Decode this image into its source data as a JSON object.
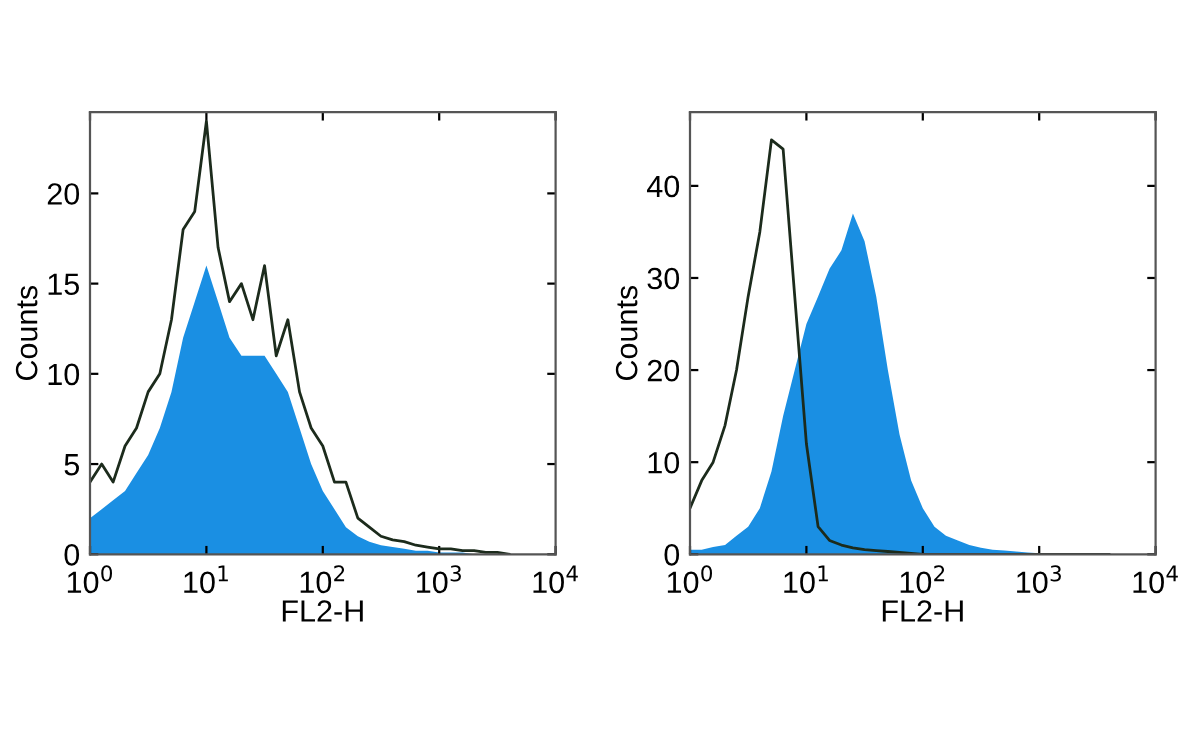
{
  "chart_data": [
    {
      "type": "area",
      "xlabel": "FL2-H",
      "ylabel": "Counts",
      "log": "x",
      "grid": false,
      "x": [
        1,
        1.26,
        1.58,
        2,
        2.51,
        3.16,
        3.98,
        5.01,
        6.31,
        7.94,
        10,
        12.6,
        15.8,
        20,
        25.1,
        31.6,
        39.8,
        50.1,
        63.1,
        79.4,
        100,
        126,
        158,
        200,
        251,
        316,
        398,
        501,
        631,
        794,
        1000,
        1259,
        1585,
        1995,
        2512,
        3162,
        3981
      ],
      "xlim": [
        1,
        10000
      ],
      "xticks": [
        {
          "value": 1,
          "label": "10$^{0}$"
        },
        {
          "value": 10,
          "label": "10$^{1}$"
        },
        {
          "value": 100,
          "label": "10$^{2}$"
        },
        {
          "value": 1000,
          "label": "10$^{3}$"
        },
        {
          "value": 10000,
          "label": "10$^{4}$"
        }
      ],
      "ylim": [
        0,
        24.5
      ],
      "yticks": [
        0,
        5,
        10,
        15,
        20
      ],
      "series": [
        {
          "color": "#1a8fe3",
          "values": [
            2,
            2.5,
            3,
            3.5,
            4.5,
            5.5,
            7,
            9,
            12,
            14,
            16,
            14,
            12,
            11,
            11,
            11,
            10,
            9,
            7,
            5,
            3.5,
            2.5,
            1.5,
            1,
            0.7,
            0.5,
            0.4,
            0.3,
            0.2,
            0.2,
            0.1,
            0.1,
            0.1,
            0,
            0,
            0,
            0
          ]
        },
        {
          "type": "line",
          "color": "#1c2b1c",
          "values": [
            4,
            5,
            4,
            6,
            7,
            9,
            10,
            13,
            18,
            19,
            24,
            17,
            14,
            15,
            13,
            16,
            11,
            13,
            9,
            7,
            6,
            4,
            4,
            2,
            1.5,
            1,
            0.8,
            0.7,
            0.5,
            0.4,
            0.3,
            0.3,
            0.2,
            0.2,
            0.1,
            0.1,
            0
          ]
        }
      ]
    },
    {
      "type": "area",
      "xlabel": "FL2-H",
      "ylabel": "Counts",
      "log": "x",
      "grid": false,
      "x": [
        1,
        1.26,
        1.58,
        2,
        2.51,
        3.16,
        3.98,
        5.01,
        6.31,
        7.94,
        10,
        12.6,
        15.8,
        20,
        25.1,
        31.6,
        39.8,
        50.1,
        63.1,
        79.4,
        100,
        126,
        158,
        200,
        251,
        316,
        398,
        501,
        631,
        794,
        1000,
        1259,
        1585,
        1995,
        2512,
        3162,
        3981
      ],
      "xlim": [
        1,
        10000
      ],
      "xticks": [
        {
          "value": 1,
          "label": "10$^{0}$"
        },
        {
          "value": 10,
          "label": "10$^{1}$"
        },
        {
          "value": 100,
          "label": "10$^{2}$"
        },
        {
          "value": 1000,
          "label": "10$^{3}$"
        },
        {
          "value": 10000,
          "label": "10$^{4}$"
        }
      ],
      "ylim": [
        0,
        48
      ],
      "yticks": [
        0,
        10,
        20,
        30,
        40
      ],
      "series": [
        {
          "color": "#1a8fe3",
          "values": [
            0.5,
            0.5,
            0.8,
            1,
            2,
            3,
            5,
            9,
            15,
            20,
            25,
            28,
            31,
            33,
            37,
            34,
            28,
            20,
            13,
            8,
            5,
            3,
            2,
            1.5,
            1,
            0.7,
            0.5,
            0.4,
            0.3,
            0.2,
            0.1,
            0.1,
            0.1,
            0,
            0,
            0,
            0
          ]
        },
        {
          "type": "line",
          "color": "#1c2b1c",
          "values": [
            5,
            8,
            10,
            14,
            20,
            28,
            35,
            45,
            44,
            28,
            12,
            3,
            1.5,
            1,
            0.7,
            0.5,
            0.4,
            0.3,
            0.2,
            0.1,
            0,
            0,
            0,
            0,
            0,
            0,
            0,
            0,
            0,
            0,
            0,
            0,
            0,
            0,
            0,
            0,
            0
          ]
        }
      ]
    }
  ]
}
